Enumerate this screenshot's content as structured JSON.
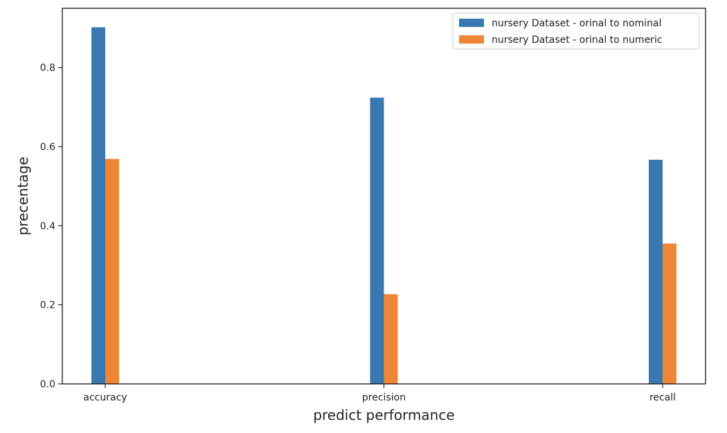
{
  "chart_data": {
    "type": "bar",
    "title": "",
    "xlabel": "predict performance",
    "ylabel": "precentage",
    "categories": [
      "accuracy",
      "precision",
      "recall"
    ],
    "series": [
      {
        "name": "nursery Dataset - orinal to nominal",
        "color": "#3a78b2",
        "values": [
          0.902,
          0.724,
          0.567
        ]
      },
      {
        "name": "nursery Dataset - orinal to numeric",
        "color": "#ef8636",
        "values": [
          0.569,
          0.227,
          0.355
        ]
      }
    ],
    "ylim": [
      0,
      0.95
    ],
    "yticks": [
      0.0,
      0.2,
      0.4,
      0.6,
      0.8
    ],
    "ytick_labels": [
      "0.0",
      "0.2",
      "0.4",
      "0.6",
      "0.8"
    ],
    "grid": false,
    "legend_position": "top-right"
  }
}
